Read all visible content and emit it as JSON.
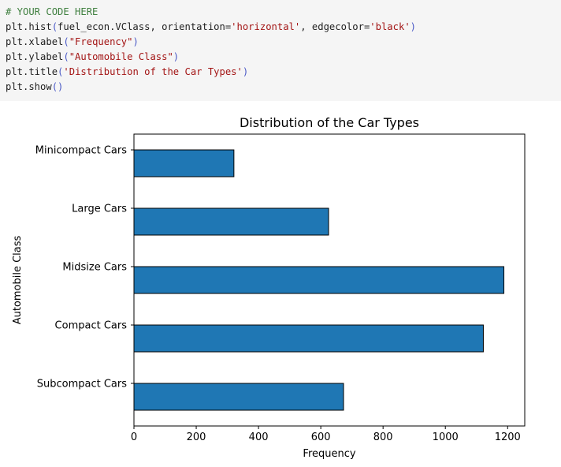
{
  "code_cell": {
    "lines": [
      [
        {
          "t": "# YOUR CODE HERE",
          "c": "comment"
        }
      ],
      [
        {
          "t": "plt.hist",
          "c": "plain"
        },
        {
          "t": "(",
          "c": "paren"
        },
        {
          "t": "fuel_econ.VClass, orientation=",
          "c": "plain"
        },
        {
          "t": "'horizontal'",
          "c": "str"
        },
        {
          "t": ", edgecolor=",
          "c": "plain"
        },
        {
          "t": "'black'",
          "c": "str"
        },
        {
          "t": ")",
          "c": "paren"
        }
      ],
      [
        {
          "t": "plt.xlabel",
          "c": "plain"
        },
        {
          "t": "(",
          "c": "paren"
        },
        {
          "t": "\"Frequency\"",
          "c": "str"
        },
        {
          "t": ")",
          "c": "paren"
        }
      ],
      [
        {
          "t": "plt.ylabel",
          "c": "plain"
        },
        {
          "t": "(",
          "c": "paren"
        },
        {
          "t": "\"Automobile Class\"",
          "c": "str"
        },
        {
          "t": ")",
          "c": "paren"
        }
      ],
      [
        {
          "t": "plt.title",
          "c": "plain"
        },
        {
          "t": "(",
          "c": "paren"
        },
        {
          "t": "'Distribution of the Car Types'",
          "c": "str"
        },
        {
          "t": ")",
          "c": "paren"
        }
      ],
      [
        {
          "t": "plt.show",
          "c": "plain"
        },
        {
          "t": "()",
          "c": "paren"
        }
      ]
    ]
  },
  "chart_data": {
    "type": "bar",
    "orientation": "horizontal",
    "title": "Distribution of the Car Types",
    "xlabel": "Frequency",
    "ylabel": "Automobile Class",
    "categories": [
      "Minicompact Cars",
      "Large Cars",
      "Midsize Cars",
      "Compact Cars",
      "Subcompact Cars"
    ],
    "values": [
      321,
      625,
      1188,
      1122,
      673
    ],
    "xlim": [
      0,
      1255
    ],
    "xticks": [
      0,
      200,
      400,
      600,
      800,
      1000,
      1200
    ],
    "bar_color": "#1f77b4",
    "edge_color": "#000000",
    "grid": false
  }
}
